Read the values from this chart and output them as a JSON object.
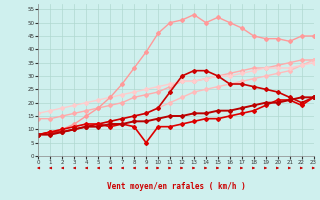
{
  "xlabel": "Vent moyen/en rafales ( km/h )",
  "xlim": [
    0,
    23
  ],
  "ylim": [
    0,
    57
  ],
  "yticks": [
    0,
    5,
    10,
    15,
    20,
    25,
    30,
    35,
    40,
    45,
    50,
    55
  ],
  "xticks": [
    0,
    1,
    2,
    3,
    4,
    5,
    6,
    7,
    8,
    9,
    10,
    11,
    12,
    13,
    14,
    15,
    16,
    17,
    18,
    19,
    20,
    21,
    22,
    23
  ],
  "bg_color": "#cff0ee",
  "grid_color": "#b0d8d0",
  "series": [
    {
      "x": [
        0,
        1,
        2,
        3,
        4,
        5,
        6,
        7,
        8,
        9,
        10,
        11,
        12,
        13,
        14,
        15,
        16,
        17,
        18,
        19,
        20,
        21,
        22,
        23
      ],
      "y": [
        14,
        14,
        15,
        16,
        17,
        18,
        19,
        20,
        22,
        23,
        24,
        26,
        28,
        28,
        29,
        30,
        31,
        32,
        33,
        33,
        34,
        35,
        36,
        36
      ],
      "color": "#ffaaaa",
      "marker": "D",
      "lw": 1.0,
      "ms": 2.0
    },
    {
      "x": [
        0,
        1,
        2,
        3,
        4,
        5,
        6,
        7,
        8,
        9,
        10,
        11,
        12,
        13,
        14,
        15,
        16,
        17,
        18,
        19,
        20,
        21,
        22,
        23
      ],
      "y": [
        8,
        9,
        10,
        11,
        12,
        12,
        13,
        14,
        15,
        16,
        18,
        20,
        22,
        24,
        25,
        26,
        27,
        28,
        29,
        30,
        31,
        32,
        34,
        36
      ],
      "color": "#ffbbbb",
      "marker": "D",
      "lw": 1.0,
      "ms": 2.0
    },
    {
      "x": [
        0,
        1,
        2,
        3,
        4,
        5,
        6,
        7,
        8,
        9,
        10,
        11,
        12,
        13,
        14,
        15,
        16,
        17,
        18,
        19,
        20,
        21,
        22,
        23
      ],
      "y": [
        16,
        17,
        18,
        19,
        20,
        21,
        22,
        23,
        24,
        25,
        26,
        27,
        28,
        28,
        29,
        30,
        30,
        31,
        32,
        33,
        33,
        33,
        34,
        35
      ],
      "color": "#ffcccc",
      "marker": "D",
      "lw": 1.0,
      "ms": 2.0
    },
    {
      "x": [
        0,
        1,
        2,
        3,
        4,
        5,
        6,
        7,
        8,
        9,
        10,
        11,
        12,
        13,
        14,
        15,
        16,
        17,
        18,
        19,
        20,
        21,
        22,
        23
      ],
      "y": [
        8,
        9,
        10,
        12,
        15,
        18,
        22,
        27,
        33,
        39,
        46,
        50,
        51,
        53,
        50,
        52,
        50,
        48,
        45,
        44,
        44,
        43,
        45,
        45
      ],
      "color": "#ff9999",
      "marker": "D",
      "lw": 1.0,
      "ms": 2.0
    },
    {
      "x": [
        0,
        1,
        2,
        3,
        4,
        5,
        6,
        7,
        8,
        9,
        10,
        11,
        12,
        13,
        14,
        15,
        16,
        17,
        18,
        19,
        20,
        21,
        22,
        23
      ],
      "y": [
        8,
        9,
        9,
        10,
        11,
        12,
        13,
        14,
        15,
        16,
        18,
        24,
        30,
        32,
        32,
        30,
        27,
        27,
        26,
        25,
        24,
        22,
        20,
        22
      ],
      "color": "#cc0000",
      "marker": "D",
      "lw": 1.2,
      "ms": 2.0
    },
    {
      "x": [
        0,
        1,
        2,
        3,
        4,
        5,
        6,
        7,
        8,
        9,
        10,
        11,
        12,
        13,
        14,
        15,
        16,
        17,
        18,
        19,
        20,
        21,
        22,
        23
      ],
      "y": [
        8,
        9,
        10,
        11,
        12,
        12,
        11,
        12,
        11,
        5,
        11,
        11,
        12,
        13,
        14,
        14,
        15,
        16,
        17,
        19,
        21,
        21,
        19,
        22
      ],
      "color": "#dd0000",
      "marker": "D",
      "lw": 1.2,
      "ms": 2.0
    },
    {
      "x": [
        0,
        1,
        2,
        3,
        4,
        5,
        6,
        7,
        8,
        9,
        10,
        11,
        12,
        13,
        14,
        15,
        16,
        17,
        18,
        19,
        20,
        21,
        22,
        23
      ],
      "y": [
        8,
        8,
        9,
        10,
        11,
        11,
        12,
        12,
        13,
        13,
        14,
        15,
        15,
        16,
        16,
        17,
        17,
        18,
        19,
        20,
        20,
        21,
        22,
        22
      ],
      "color": "#bb0000",
      "marker": "D",
      "lw": 1.4,
      "ms": 2.0
    }
  ],
  "arrows": {
    "x": [
      0,
      1,
      2,
      3,
      4,
      5,
      6,
      7,
      8,
      9,
      10,
      11,
      12,
      13,
      14,
      15,
      16,
      17,
      18,
      19,
      20,
      21,
      22,
      23
    ],
    "directions": [
      "left",
      "left",
      "left",
      "left",
      "left",
      "left",
      "left",
      "left",
      "left",
      "left",
      "right",
      "right",
      "right",
      "right",
      "right",
      "right",
      "right",
      "right",
      "right",
      "right",
      "right",
      "right",
      "right",
      "right"
    ],
    "color": "#cc0000"
  }
}
